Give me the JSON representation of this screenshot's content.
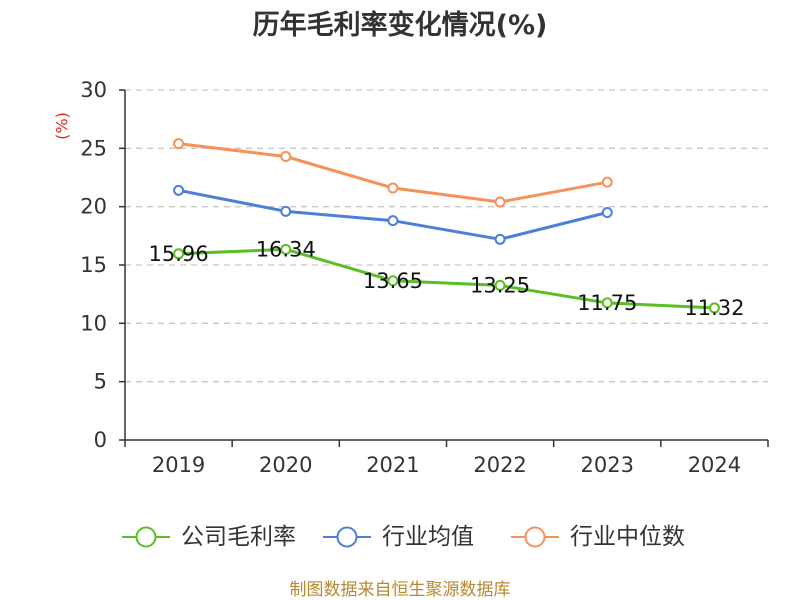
{
  "chart_data": {
    "type": "line",
    "title": "历年毛利率变化情况(%)",
    "xlabel": "",
    "ylabel": "(%)",
    "categories": [
      "2019",
      "2020",
      "2021",
      "2022",
      "2023",
      "2024"
    ],
    "ylim": [
      0,
      30
    ],
    "yticks": [
      0,
      5,
      10,
      15,
      20,
      25,
      30
    ],
    "grid": true,
    "legend": "bottom",
    "series": [
      {
        "name": "公司毛利率",
        "color": "#5bbf24",
        "show_labels": true,
        "values": [
          15.96,
          16.34,
          13.65,
          13.25,
          11.75,
          11.32
        ]
      },
      {
        "name": "行业均值",
        "color": "#4e7fd8",
        "show_labels": false,
        "values": [
          21.4,
          19.6,
          18.8,
          17.2,
          19.5,
          null
        ]
      },
      {
        "name": "行业中位数",
        "color": "#f5925a",
        "show_labels": false,
        "values": [
          25.4,
          24.3,
          21.6,
          20.4,
          22.1,
          null
        ]
      }
    ]
  },
  "footer": {
    "source": "制图数据来自恒生聚源数据库"
  },
  "colors": {
    "ylabel": "#e02a1f",
    "source": "#b8892e"
  }
}
